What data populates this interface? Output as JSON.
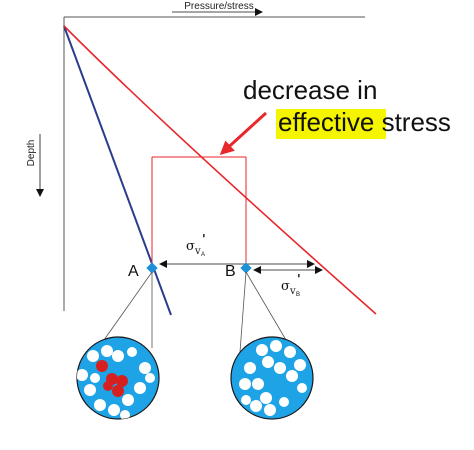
{
  "axes": {
    "x_label": "Pressure/stress",
    "y_label": "Depth"
  },
  "points": {
    "a_label": "A",
    "b_label": "B"
  },
  "stress_labels": {
    "sigma_a_symbol": "σ",
    "sigma_a_sub": "v",
    "sigma_a_prime": "'",
    "sigma_a_subsub": "A",
    "sigma_b_symbol": "σ",
    "sigma_b_sub": "v",
    "sigma_b_prime": "'",
    "sigma_b_subsub": "B"
  },
  "annotation": {
    "line1": "decrease in",
    "highlight_word": "effective",
    "line2_rest": " stress"
  },
  "colors": {
    "hydrostatic_line": "#2b3c8c",
    "lithostatic_line": "#e8262b",
    "marker": "#1e90d8",
    "grain_circle": "#1ea4e6",
    "grain_red": "#d62020",
    "highlight": "#f5f500"
  }
}
